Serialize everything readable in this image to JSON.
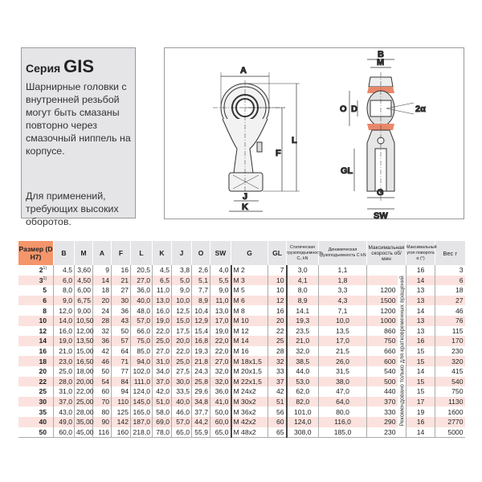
{
  "info": {
    "series_prefix": "Серия",
    "series_name": "GIS",
    "description": "Шарнирные головки с внутренней резьбой могут быть смазаны повторно через смазочный ниппель на корпусе.",
    "application": "Для применений, требующих высоких оборотов."
  },
  "drawing": {
    "labels": {
      "A": "A",
      "L": "L",
      "F": "F",
      "J": "J",
      "K": "K",
      "B": "B",
      "M": "M",
      "O": "O",
      "D": "D",
      "alpha": "2α",
      "GL": "GL",
      "G": "G",
      "SW": "SW"
    },
    "accent_color": "#e8876a"
  },
  "table": {
    "headers": {
      "size": "Размер (D H7)",
      "B": "B",
      "M": "M",
      "A": "A",
      "F": "F",
      "L": "L",
      "K": "K",
      "J": "J",
      "O": "O",
      "SW": "SW",
      "G": "G",
      "GL": "GL",
      "static_load": "Статическая грузоподъемность C₀ kN",
      "dynamic_load": "Динамическая грузоподъемность C kN",
      "max_speed": "Максимальная скорость об/мин",
      "max_angle": "Максимальный угол поворота α (°)",
      "weight": "Вес г"
    },
    "speed_note": "Рекомендовано только для кратковременных вращений",
    "rows": [
      {
        "size": "2",
        "note": "1)",
        "B": "4,5",
        "M": "3,60",
        "A": "9",
        "F": "16",
        "L": "20,5",
        "K": "4,5",
        "J": "3,8",
        "O": "2,6",
        "SW": "4,0",
        "G": "M 2",
        "GL": "7",
        "C0": "3,0",
        "C": "1,1",
        "speed": "",
        "angle": "16",
        "weight": "3"
      },
      {
        "size": "3",
        "note": "1)",
        "B": "6,0",
        "M": "4,50",
        "A": "14",
        "F": "21",
        "L": "27,0",
        "K": "6,5",
        "J": "5,0",
        "O": "5,1",
        "SW": "5,5",
        "G": "M 3",
        "GL": "10",
        "C0": "4,1",
        "C": "1,8",
        "speed": "",
        "angle": "14",
        "weight": "6"
      },
      {
        "size": "5",
        "note": "",
        "B": "8,0",
        "M": "6,00",
        "A": "18",
        "F": "27",
        "L": "36,0",
        "K": "11,0",
        "J": "9,0",
        "O": "7,7",
        "SW": "9,0",
        "G": "M 5",
        "GL": "10",
        "C0": "8,0",
        "C": "3,3",
        "speed": "1200",
        "angle": "13",
        "weight": "18"
      },
      {
        "size": "6",
        "note": "",
        "B": "9,0",
        "M": "6,75",
        "A": "20",
        "F": "30",
        "L": "40,0",
        "K": "13,0",
        "J": "10,0",
        "O": "8,9",
        "SW": "11,0",
        "G": "M 6",
        "GL": "12",
        "C0": "8,9",
        "C": "4,3",
        "speed": "1500",
        "angle": "13",
        "weight": "27"
      },
      {
        "size": "8",
        "note": "",
        "B": "12,0",
        "M": "9,00",
        "A": "24",
        "F": "36",
        "L": "48,0",
        "K": "16,0",
        "J": "12,5",
        "O": "10,4",
        "SW": "13,0",
        "G": "M 8",
        "GL": "16",
        "C0": "14,1",
        "C": "7,1",
        "speed": "1200",
        "angle": "14",
        "weight": "46"
      },
      {
        "size": "10",
        "note": "",
        "B": "14,0",
        "M": "10,50",
        "A": "28",
        "F": "43",
        "L": "57,0",
        "K": "19,0",
        "J": "15,0",
        "O": "12,9",
        "SW": "17,0",
        "G": "M 10",
        "GL": "20",
        "C0": "19,3",
        "C": "10,0",
        "speed": "1000",
        "angle": "13",
        "weight": "76"
      },
      {
        "size": "12",
        "note": "",
        "B": "16,0",
        "M": "12,00",
        "A": "32",
        "F": "50",
        "L": "66,0",
        "K": "22,0",
        "J": "17,5",
        "O": "15,4",
        "SW": "19,0",
        "G": "M 12",
        "GL": "22",
        "C0": "23,5",
        "C": "13,5",
        "speed": "860",
        "angle": "13",
        "weight": "115"
      },
      {
        "size": "14",
        "note": "",
        "B": "19,0",
        "M": "13,50",
        "A": "36",
        "F": "57",
        "L": "75,0",
        "K": "25,0",
        "J": "20,0",
        "O": "16,8",
        "SW": "22,0",
        "G": "M 14",
        "GL": "25",
        "C0": "21,0",
        "C": "17,0",
        "speed": "750",
        "angle": "16",
        "weight": "170"
      },
      {
        "size": "16",
        "note": "",
        "B": "21,0",
        "M": "15,00",
        "A": "42",
        "F": "64",
        "L": "85,0",
        "K": "27,0",
        "J": "22,0",
        "O": "19,3",
        "SW": "22,0",
        "G": "M 16",
        "GL": "28",
        "C0": "32,0",
        "C": "21,5",
        "speed": "660",
        "angle": "15",
        "weight": "230"
      },
      {
        "size": "18",
        "note": "",
        "B": "23,0",
        "M": "16,50",
        "A": "46",
        "F": "71",
        "L": "94,0",
        "K": "31,0",
        "J": "25,0",
        "O": "21,8",
        "SW": "27,0",
        "G": "M 18x1,5",
        "GL": "32",
        "C0": "38,5",
        "C": "26,0",
        "speed": "600",
        "angle": "15",
        "weight": "320"
      },
      {
        "size": "20",
        "note": "",
        "B": "25,0",
        "M": "18,00",
        "A": "50",
        "F": "77",
        "L": "102,0",
        "K": "34,0",
        "J": "27,5",
        "O": "24,3",
        "SW": "32,0",
        "G": "M 20x1,5",
        "GL": "33",
        "C0": "44,0",
        "C": "31,5",
        "speed": "540",
        "angle": "14",
        "weight": "415"
      },
      {
        "size": "22",
        "note": "",
        "B": "28,0",
        "M": "20,00",
        "A": "54",
        "F": "84",
        "L": "111,0",
        "K": "37,0",
        "J": "30,0",
        "O": "25,8",
        "SW": "32,0",
        "G": "M 22x1,5",
        "GL": "37",
        "C0": "53,0",
        "C": "38,0",
        "speed": "500",
        "angle": "15",
        "weight": "540"
      },
      {
        "size": "25",
        "note": "",
        "B": "31,0",
        "M": "22,00",
        "A": "60",
        "F": "94",
        "L": "124,0",
        "K": "42,0",
        "J": "33,5",
        "O": "29,6",
        "SW": "36,0",
        "G": "M 24x2",
        "GL": "42",
        "C0": "62,0",
        "C": "47,0",
        "speed": "440",
        "angle": "15",
        "weight": "750"
      },
      {
        "size": "30",
        "note": "",
        "B": "37,0",
        "M": "25,00",
        "A": "70",
        "F": "110",
        "L": "145,0",
        "K": "51,0",
        "J": "40,0",
        "O": "34,8",
        "SW": "41,0",
        "G": "M 30x2",
        "GL": "51",
        "C0": "82,0",
        "C": "64,0",
        "speed": "370",
        "angle": "17",
        "weight": "1130"
      },
      {
        "size": "35",
        "note": "",
        "B": "43,0",
        "M": "28,00",
        "A": "80",
        "F": "125",
        "L": "165,0",
        "K": "58,0",
        "J": "46,0",
        "O": "37,7",
        "SW": "50,0",
        "G": "M 36x2",
        "GL": "56",
        "C0": "101,0",
        "C": "80,0",
        "speed": "330",
        "angle": "19",
        "weight": "1600"
      },
      {
        "size": "40",
        "note": "",
        "B": "49,0",
        "M": "35,00",
        "A": "90",
        "F": "142",
        "L": "187,0",
        "K": "69,0",
        "J": "57,0",
        "O": "44,2",
        "SW": "60,0",
        "G": "M 42x2",
        "GL": "60",
        "C0": "124,0",
        "C": "116,0",
        "speed": "290",
        "angle": "16",
        "weight": "2770"
      },
      {
        "size": "50",
        "note": "",
        "B": "60,0",
        "M": "45,00",
        "A": "116",
        "F": "160",
        "L": "218,0",
        "K": "78,0",
        "J": "65,0",
        "O": "55,9",
        "SW": "65,0",
        "G": "M 48x2",
        "GL": "65",
        "C0": "308,0",
        "C": "185,0",
        "speed": "230",
        "angle": "14",
        "weight": "5000"
      }
    ],
    "colors": {
      "header_bg": "#e5e5e8",
      "size_header_bg": "#f4956a",
      "alt_row_bg": "#fbe2de"
    }
  }
}
